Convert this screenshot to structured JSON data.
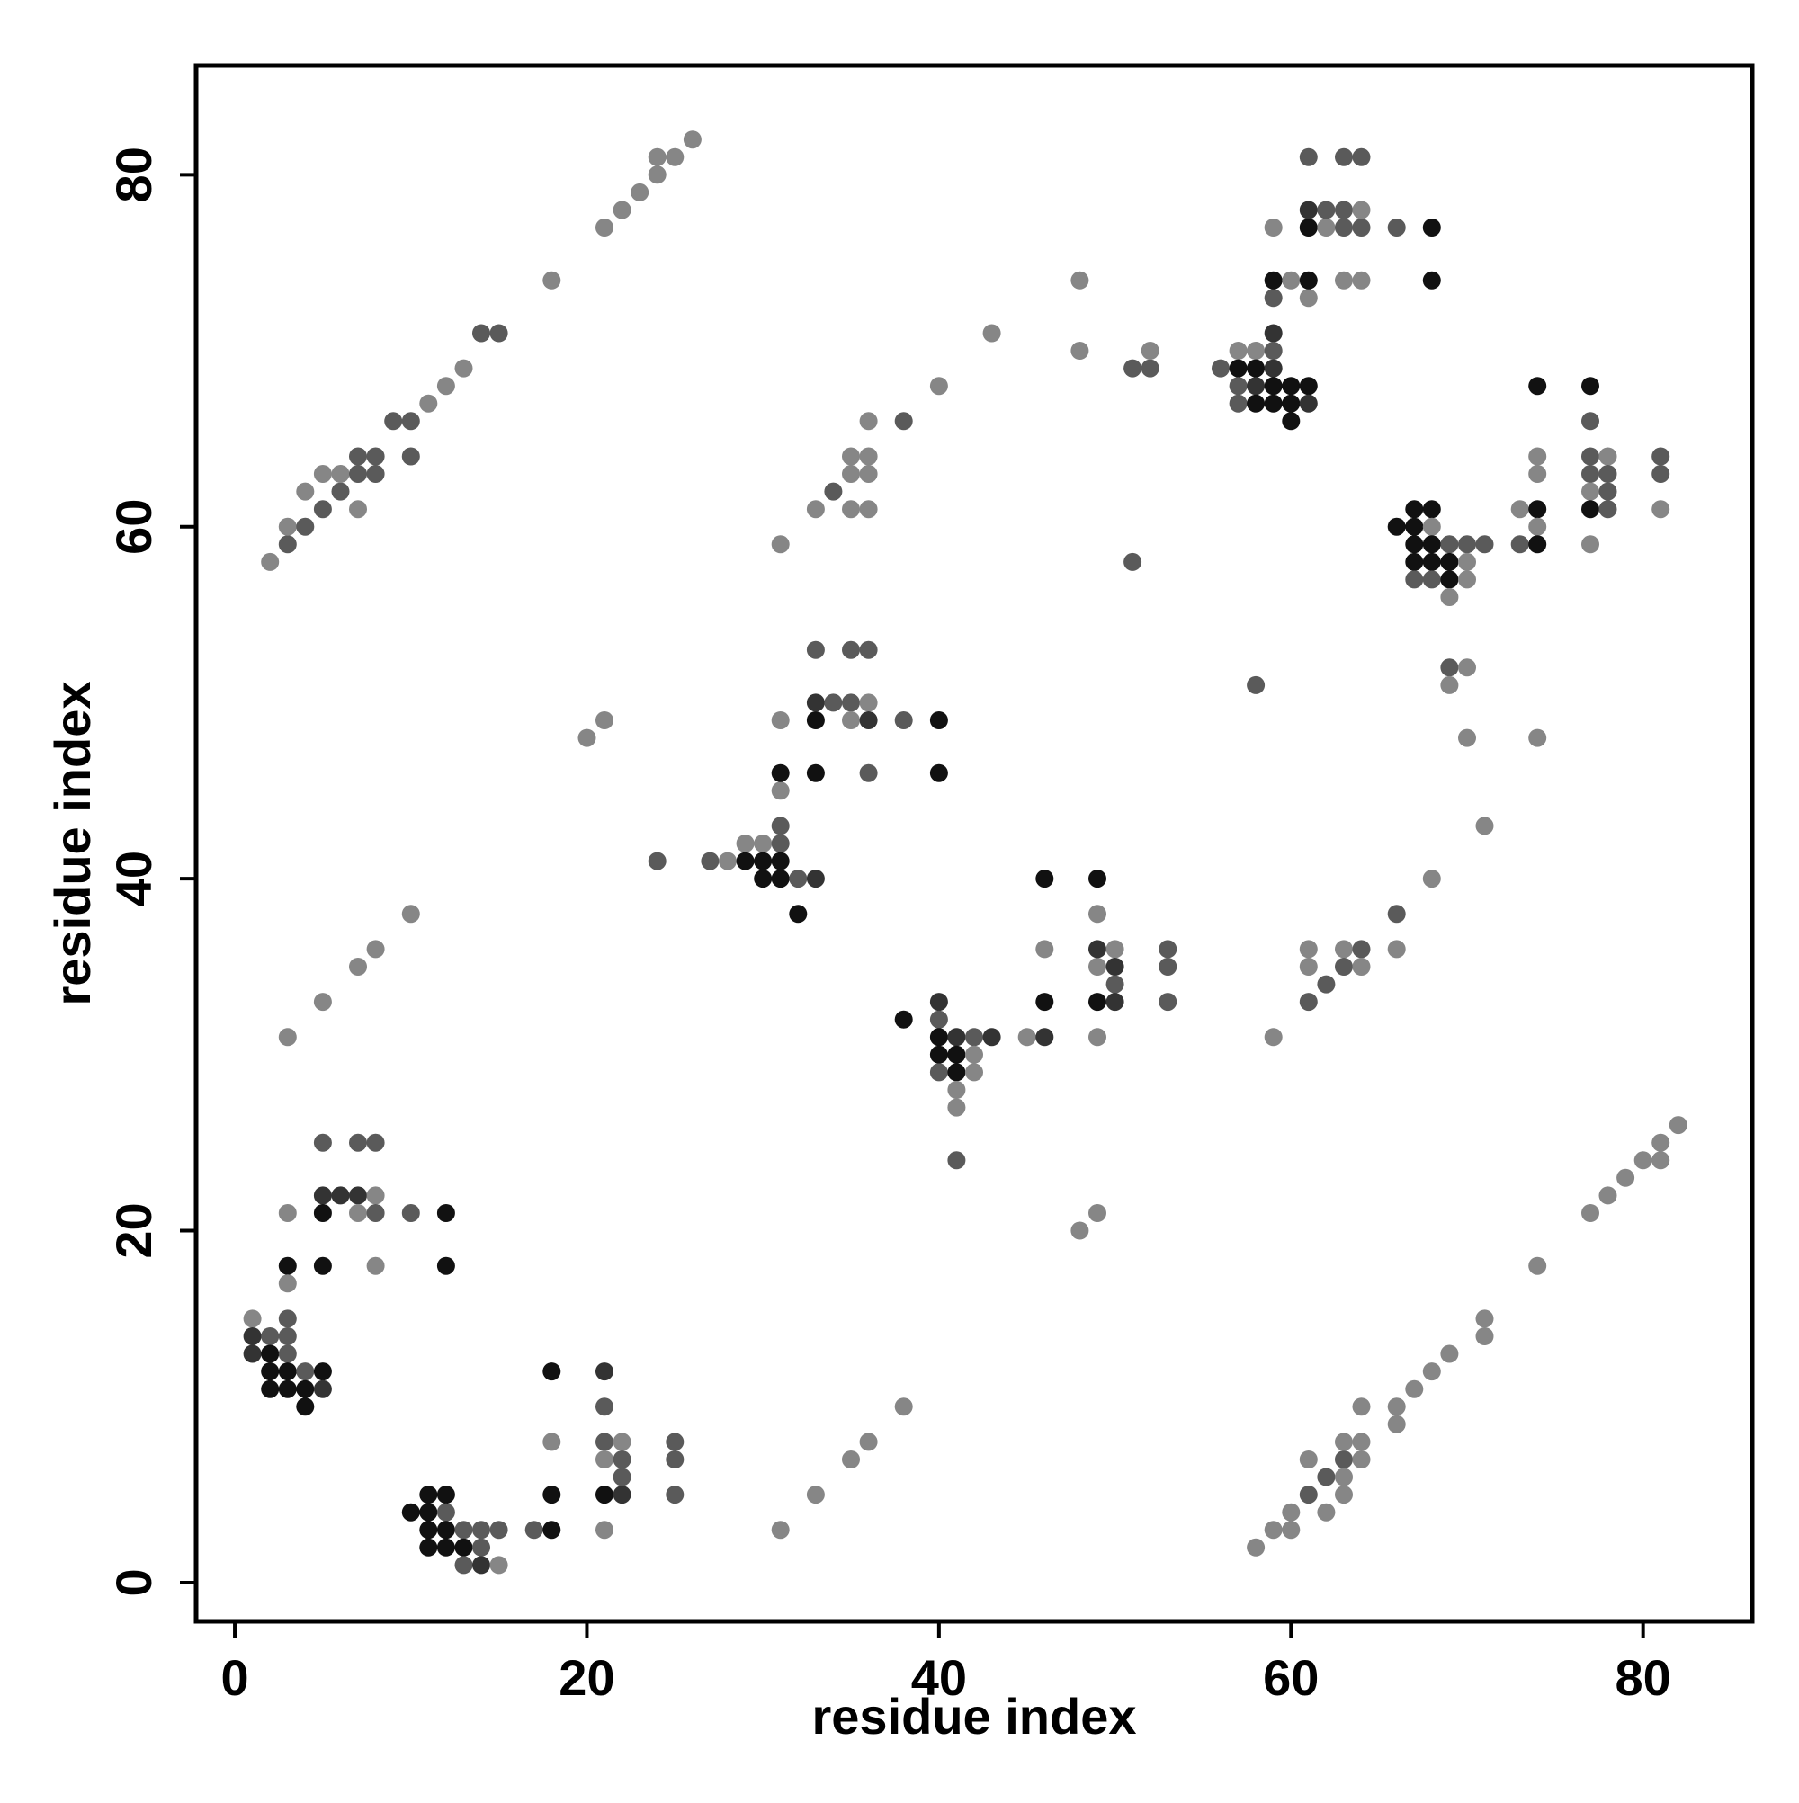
{
  "chart_data": {
    "type": "scatter",
    "title": "",
    "xlabel": "residue index",
    "ylabel": "residue index",
    "xlim": [
      -2.2,
      86.2
    ],
    "ylim": [
      -2.2,
      86.2
    ],
    "xticks": [
      0,
      20,
      40,
      60,
      80
    ],
    "yticks": [
      0,
      20,
      40,
      60,
      80
    ],
    "grid": false,
    "legend": "none",
    "shade_colors": {
      "1": "#111111",
      "2": "#333333",
      "3": "#5a5a5a",
      "4": "#868686"
    },
    "points": [
      [
        2,
        58,
        4
      ],
      [
        3,
        59,
        3
      ],
      [
        3,
        60,
        4
      ],
      [
        4,
        60,
        3
      ],
      [
        4,
        62,
        4
      ],
      [
        5,
        61,
        3
      ],
      [
        5,
        63,
        4
      ],
      [
        6,
        62,
        3
      ],
      [
        6,
        63,
        4
      ],
      [
        7,
        63,
        3
      ],
      [
        7,
        64,
        3
      ],
      [
        7,
        61,
        4
      ],
      [
        8,
        63,
        3
      ],
      [
        8,
        64,
        3
      ],
      [
        9,
        66,
        3
      ],
      [
        10,
        66,
        3
      ],
      [
        10,
        64,
        3
      ],
      [
        11,
        67,
        4
      ],
      [
        12,
        68,
        4
      ],
      [
        13,
        69,
        4
      ],
      [
        14,
        71,
        3
      ],
      [
        15,
        71,
        3
      ],
      [
        18,
        74,
        4
      ],
      [
        21,
        77,
        4
      ],
      [
        22,
        78,
        4
      ],
      [
        23,
        79,
        4
      ],
      [
        24,
        80,
        4
      ],
      [
        24,
        81,
        4
      ],
      [
        25,
        81,
        4
      ],
      [
        26,
        82,
        4
      ],
      [
        1,
        15,
        4
      ],
      [
        1,
        14,
        2
      ],
      [
        1,
        13,
        2
      ],
      [
        2,
        14,
        3
      ],
      [
        2,
        13,
        1
      ],
      [
        2,
        12,
        1
      ],
      [
        2,
        11,
        1
      ],
      [
        3,
        15,
        3
      ],
      [
        3,
        14,
        3
      ],
      [
        3,
        13,
        3
      ],
      [
        3,
        12,
        1
      ],
      [
        3,
        11,
        1
      ],
      [
        4,
        12,
        3
      ],
      [
        4,
        11,
        1
      ],
      [
        4,
        10,
        1
      ],
      [
        5,
        12,
        1
      ],
      [
        5,
        11,
        2
      ],
      [
        3,
        21,
        4
      ],
      [
        3,
        18,
        1
      ],
      [
        3,
        17,
        4
      ],
      [
        5,
        25,
        3
      ],
      [
        5,
        22,
        2
      ],
      [
        5,
        21,
        1
      ],
      [
        5,
        18,
        1
      ],
      [
        6,
        22,
        2
      ],
      [
        7,
        25,
        3
      ],
      [
        7,
        22,
        2
      ],
      [
        7,
        21,
        4
      ],
      [
        8,
        25,
        3
      ],
      [
        8,
        22,
        4
      ],
      [
        8,
        21,
        3
      ],
      [
        8,
        18,
        4
      ],
      [
        10,
        21,
        3
      ],
      [
        12,
        21,
        1
      ],
      [
        12,
        18,
        1
      ],
      [
        3,
        31,
        4
      ],
      [
        5,
        33,
        4
      ],
      [
        7,
        35,
        4
      ],
      [
        8,
        36,
        4
      ],
      [
        10,
        38,
        4
      ],
      [
        10,
        4,
        1
      ],
      [
        11,
        5,
        1
      ],
      [
        11,
        4,
        1
      ],
      [
        11,
        3,
        1
      ],
      [
        11,
        2,
        1
      ],
      [
        12,
        5,
        1
      ],
      [
        12,
        4,
        3
      ],
      [
        12,
        3,
        1
      ],
      [
        12,
        2,
        1
      ],
      [
        13,
        3,
        3
      ],
      [
        13,
        2,
        1
      ],
      [
        13,
        1,
        3
      ],
      [
        14,
        3,
        3
      ],
      [
        14,
        2,
        3
      ],
      [
        14,
        1,
        2
      ],
      [
        15,
        3,
        3
      ],
      [
        15,
        1,
        4
      ],
      [
        17,
        3,
        3
      ],
      [
        18,
        3,
        1
      ],
      [
        18,
        5,
        1
      ],
      [
        18,
        8,
        4
      ],
      [
        18,
        12,
        1
      ],
      [
        21,
        12,
        2
      ],
      [
        21,
        10,
        3
      ],
      [
        21,
        8,
        3
      ],
      [
        21,
        7,
        4
      ],
      [
        21,
        5,
        1
      ],
      [
        21,
        3,
        4
      ],
      [
        22,
        8,
        4
      ],
      [
        22,
        7,
        3
      ],
      [
        22,
        6,
        3
      ],
      [
        22,
        5,
        2
      ],
      [
        25,
        8,
        3
      ],
      [
        25,
        7,
        3
      ],
      [
        25,
        5,
        3
      ],
      [
        20,
        48,
        4
      ],
      [
        21,
        49,
        4
      ],
      [
        24,
        41,
        3
      ],
      [
        27,
        41,
        3
      ],
      [
        28,
        41,
        4
      ],
      [
        29,
        42,
        4
      ],
      [
        29,
        41,
        1
      ],
      [
        30,
        42,
        4
      ],
      [
        30,
        41,
        1
      ],
      [
        30,
        40,
        1
      ],
      [
        31,
        43,
        3
      ],
      [
        31,
        42,
        3
      ],
      [
        31,
        41,
        1
      ],
      [
        31,
        40,
        1
      ],
      [
        32,
        40,
        3
      ],
      [
        32,
        38,
        1
      ],
      [
        33,
        40,
        2
      ],
      [
        31,
        45,
        4
      ],
      [
        31,
        46,
        1
      ],
      [
        31,
        49,
        4
      ],
      [
        33,
        46,
        1
      ],
      [
        33,
        49,
        1
      ],
      [
        33,
        50,
        2
      ],
      [
        33,
        53,
        3
      ],
      [
        34,
        50,
        3
      ],
      [
        35,
        50,
        3
      ],
      [
        35,
        49,
        4
      ],
      [
        35,
        53,
        3
      ],
      [
        36,
        53,
        3
      ],
      [
        36,
        50,
        4
      ],
      [
        36,
        49,
        2
      ],
      [
        36,
        46,
        3
      ],
      [
        38,
        49,
        3
      ],
      [
        40,
        49,
        1
      ],
      [
        40,
        46,
        1
      ],
      [
        31,
        59,
        4
      ],
      [
        33,
        61,
        4
      ],
      [
        34,
        62,
        3
      ],
      [
        35,
        61,
        4
      ],
      [
        35,
        63,
        4
      ],
      [
        35,
        64,
        4
      ],
      [
        36,
        61,
        4
      ],
      [
        36,
        63,
        4
      ],
      [
        36,
        64,
        4
      ],
      [
        36,
        66,
        4
      ],
      [
        38,
        66,
        3
      ],
      [
        40,
        68,
        4
      ],
      [
        43,
        71,
        4
      ],
      [
        48,
        74,
        4
      ],
      [
        48,
        70,
        4
      ],
      [
        51,
        69,
        3
      ],
      [
        52,
        69,
        3
      ],
      [
        52,
        70,
        4
      ],
      [
        31,
        3,
        4
      ],
      [
        33,
        5,
        4
      ],
      [
        35,
        7,
        4
      ],
      [
        36,
        8,
        4
      ],
      [
        38,
        10,
        4
      ],
      [
        38,
        32,
        1
      ],
      [
        40,
        33,
        2
      ],
      [
        40,
        32,
        3
      ],
      [
        40,
        31,
        1
      ],
      [
        40,
        30,
        1
      ],
      [
        40,
        29,
        3
      ],
      [
        41,
        31,
        2
      ],
      [
        41,
        30,
        1
      ],
      [
        41,
        29,
        1
      ],
      [
        41,
        28,
        4
      ],
      [
        41,
        27,
        4
      ],
      [
        41,
        24,
        3
      ],
      [
        42,
        31,
        3
      ],
      [
        42,
        30,
        4
      ],
      [
        42,
        29,
        4
      ],
      [
        43,
        31,
        2
      ],
      [
        45,
        31,
        4
      ],
      [
        46,
        31,
        2
      ],
      [
        46,
        33,
        1
      ],
      [
        46,
        36,
        4
      ],
      [
        46,
        40,
        1
      ],
      [
        48,
        20,
        4
      ],
      [
        49,
        21,
        4
      ],
      [
        49,
        31,
        4
      ],
      [
        49,
        33,
        1
      ],
      [
        49,
        35,
        4
      ],
      [
        49,
        36,
        2
      ],
      [
        49,
        38,
        4
      ],
      [
        49,
        40,
        1
      ],
      [
        50,
        36,
        4
      ],
      [
        50,
        35,
        2
      ],
      [
        50,
        34,
        3
      ],
      [
        50,
        33,
        2
      ],
      [
        53,
        36,
        3
      ],
      [
        53,
        35,
        3
      ],
      [
        53,
        33,
        3
      ],
      [
        51,
        58,
        3
      ],
      [
        56,
        69,
        3
      ],
      [
        57,
        70,
        4
      ],
      [
        57,
        69,
        1
      ],
      [
        57,
        68,
        3
      ],
      [
        57,
        67,
        3
      ],
      [
        58,
        70,
        4
      ],
      [
        58,
        69,
        1
      ],
      [
        58,
        68,
        2
      ],
      [
        58,
        67,
        1
      ],
      [
        59,
        71,
        2
      ],
      [
        59,
        70,
        3
      ],
      [
        59,
        69,
        2
      ],
      [
        59,
        68,
        1
      ],
      [
        59,
        67,
        1
      ],
      [
        60,
        68,
        1
      ],
      [
        60,
        67,
        1
      ],
      [
        60,
        66,
        1
      ],
      [
        61,
        68,
        1
      ],
      [
        61,
        67,
        2
      ],
      [
        59,
        73,
        3
      ],
      [
        59,
        74,
        1
      ],
      [
        59,
        77,
        4
      ],
      [
        60,
        74,
        4
      ],
      [
        61,
        73,
        4
      ],
      [
        61,
        74,
        1
      ],
      [
        61,
        77,
        1
      ],
      [
        61,
        78,
        2
      ],
      [
        61,
        81,
        3
      ],
      [
        62,
        78,
        3
      ],
      [
        62,
        77,
        4
      ],
      [
        63,
        78,
        3
      ],
      [
        63,
        77,
        3
      ],
      [
        63,
        81,
        3
      ],
      [
        63,
        74,
        4
      ],
      [
        64,
        81,
        3
      ],
      [
        64,
        78,
        4
      ],
      [
        64,
        77,
        3
      ],
      [
        64,
        74,
        4
      ],
      [
        66,
        77,
        3
      ],
      [
        68,
        77,
        1
      ],
      [
        68,
        74,
        1
      ],
      [
        58,
        51,
        3
      ],
      [
        59,
        31,
        4
      ],
      [
        61,
        36,
        4
      ],
      [
        61,
        35,
        4
      ],
      [
        61,
        33,
        3
      ],
      [
        62,
        34,
        3
      ],
      [
        63,
        36,
        4
      ],
      [
        63,
        35,
        3
      ],
      [
        64,
        36,
        3
      ],
      [
        64,
        35,
        4
      ],
      [
        66,
        36,
        4
      ],
      [
        66,
        38,
        3
      ],
      [
        68,
        40,
        4
      ],
      [
        71,
        43,
        4
      ],
      [
        66,
        60,
        1
      ],
      [
        67,
        61,
        1
      ],
      [
        67,
        60,
        1
      ],
      [
        67,
        59,
        1
      ],
      [
        67,
        58,
        1
      ],
      [
        67,
        57,
        3
      ],
      [
        68,
        61,
        1
      ],
      [
        68,
        60,
        4
      ],
      [
        68,
        59,
        1
      ],
      [
        68,
        58,
        1
      ],
      [
        68,
        57,
        3
      ],
      [
        69,
        59,
        3
      ],
      [
        69,
        58,
        1
      ],
      [
        69,
        57,
        1
      ],
      [
        69,
        56,
        4
      ],
      [
        70,
        59,
        3
      ],
      [
        70,
        58,
        4
      ],
      [
        70,
        57,
        4
      ],
      [
        71,
        59,
        3
      ],
      [
        69,
        52,
        3
      ],
      [
        69,
        51,
        4
      ],
      [
        70,
        52,
        4
      ],
      [
        70,
        48,
        4
      ],
      [
        73,
        61,
        4
      ],
      [
        73,
        59,
        3
      ],
      [
        74,
        68,
        1
      ],
      [
        74,
        64,
        4
      ],
      [
        74,
        63,
        4
      ],
      [
        74,
        61,
        1
      ],
      [
        74,
        60,
        4
      ],
      [
        74,
        59,
        1
      ],
      [
        74,
        48,
        4
      ],
      [
        77,
        68,
        1
      ],
      [
        77,
        66,
        3
      ],
      [
        77,
        64,
        3
      ],
      [
        77,
        63,
        3
      ],
      [
        77,
        62,
        4
      ],
      [
        77,
        61,
        1
      ],
      [
        77,
        59,
        4
      ],
      [
        78,
        64,
        4
      ],
      [
        78,
        63,
        3
      ],
      [
        78,
        62,
        3
      ],
      [
        78,
        61,
        3
      ],
      [
        81,
        64,
        3
      ],
      [
        81,
        63,
        3
      ],
      [
        81,
        61,
        4
      ],
      [
        58,
        2,
        4
      ],
      [
        59,
        3,
        4
      ],
      [
        60,
        3,
        4
      ],
      [
        60,
        4,
        4
      ],
      [
        61,
        5,
        3
      ],
      [
        61,
        7,
        4
      ],
      [
        62,
        4,
        4
      ],
      [
        62,
        6,
        3
      ],
      [
        63,
        5,
        4
      ],
      [
        63,
        6,
        4
      ],
      [
        63,
        7,
        3
      ],
      [
        63,
        8,
        4
      ],
      [
        64,
        7,
        4
      ],
      [
        64,
        8,
        4
      ],
      [
        64,
        10,
        4
      ],
      [
        66,
        9,
        4
      ],
      [
        66,
        10,
        4
      ],
      [
        67,
        11,
        4
      ],
      [
        68,
        12,
        4
      ],
      [
        69,
        13,
        4
      ],
      [
        71,
        14,
        4
      ],
      [
        71,
        15,
        4
      ],
      [
        74,
        18,
        4
      ],
      [
        77,
        21,
        4
      ],
      [
        78,
        22,
        4
      ],
      [
        79,
        23,
        4
      ],
      [
        80,
        24,
        4
      ],
      [
        81,
        24,
        4
      ],
      [
        81,
        25,
        4
      ],
      [
        82,
        26,
        4
      ]
    ]
  }
}
